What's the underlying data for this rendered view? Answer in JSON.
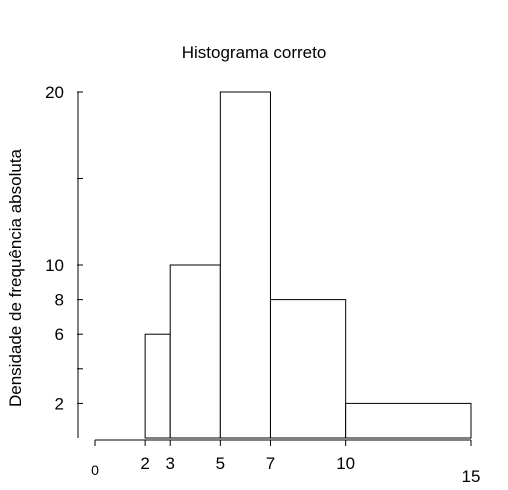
{
  "chart_data": {
    "type": "bar",
    "title": "Histograma correto",
    "xlabel": "",
    "ylabel": "Densidade de frequência absoluta",
    "bins": [
      {
        "start": 2,
        "end": 3,
        "value": 6
      },
      {
        "start": 3,
        "end": 5,
        "value": 10
      },
      {
        "start": 5,
        "end": 7,
        "value": 20
      },
      {
        "start": 7,
        "end": 10,
        "value": 8
      },
      {
        "start": 10,
        "end": 15,
        "value": 2
      }
    ],
    "xlim": [
      0,
      15
    ],
    "ylim": [
      0,
      20
    ],
    "x_ticks": [
      {
        "value": 0,
        "label": "0"
      },
      {
        "value": 2,
        "label": "2"
      },
      {
        "value": 3,
        "label": "3"
      },
      {
        "value": 5,
        "label": "5"
      },
      {
        "value": 7,
        "label": "7"
      },
      {
        "value": 10,
        "label": "10"
      },
      {
        "value": 15,
        "label": "15"
      }
    ],
    "y_ticks": [
      {
        "value": 2,
        "label": "2"
      },
      {
        "value": 4,
        "label": ""
      },
      {
        "value": 6,
        "label": "6"
      },
      {
        "value": 8,
        "label": "8"
      },
      {
        "value": 10,
        "label": "10"
      },
      {
        "value": 15,
        "label": ""
      },
      {
        "value": 20,
        "label": "20"
      }
    ],
    "grid": false,
    "legend": "none",
    "colors": {
      "bar_fill": "#ffffff",
      "bar_stroke": "#000000",
      "axis": "#000000"
    }
  }
}
